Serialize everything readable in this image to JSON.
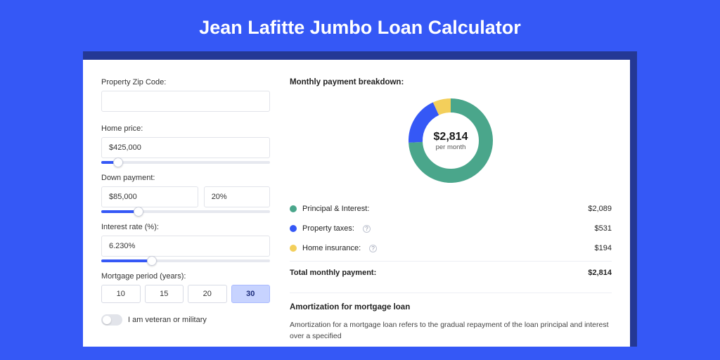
{
  "page": {
    "title": "Jean Lafitte Jumbo Loan Calculator",
    "bg_color": "#3558f6",
    "card_border_color": "#243895"
  },
  "form": {
    "zip": {
      "label": "Property Zip Code:",
      "value": ""
    },
    "price": {
      "label": "Home price:",
      "value": "$425,000",
      "slider_pct": 10
    },
    "down": {
      "label": "Down payment:",
      "value": "$85,000",
      "pct": "20%",
      "slider_pct": 22
    },
    "rate": {
      "label": "Interest rate (%):",
      "value": "6.230%",
      "slider_pct": 30
    },
    "period": {
      "label": "Mortgage period (years):",
      "options": [
        "10",
        "15",
        "20",
        "30"
      ],
      "selected_index": 3
    },
    "veteran": {
      "label": "I am veteran or military",
      "checked": false
    }
  },
  "breakdown": {
    "title": "Monthly payment breakdown:",
    "donut": {
      "type": "donut",
      "center_amount": "$2,814",
      "center_sub": "per month",
      "thickness": 20,
      "slices": [
        {
          "key": "pi",
          "value": 2089,
          "color": "#4aa68b"
        },
        {
          "key": "tax",
          "value": 531,
          "color": "#3558f6"
        },
        {
          "key": "ins",
          "value": 194,
          "color": "#f3cf5b"
        }
      ]
    },
    "rows": [
      {
        "dot": "#4aa68b",
        "label": "Principal & Interest:",
        "info": false,
        "amount": "$2,089"
      },
      {
        "dot": "#3558f6",
        "label": "Property taxes:",
        "info": true,
        "amount": "$531"
      },
      {
        "dot": "#f3cf5b",
        "label": "Home insurance:",
        "info": true,
        "amount": "$194"
      }
    ],
    "total": {
      "label": "Total monthly payment:",
      "amount": "$2,814"
    }
  },
  "amortization": {
    "title": "Amortization for mortgage loan",
    "text": "Amortization for a mortgage loan refers to the gradual repayment of the loan principal and interest over a specified"
  }
}
